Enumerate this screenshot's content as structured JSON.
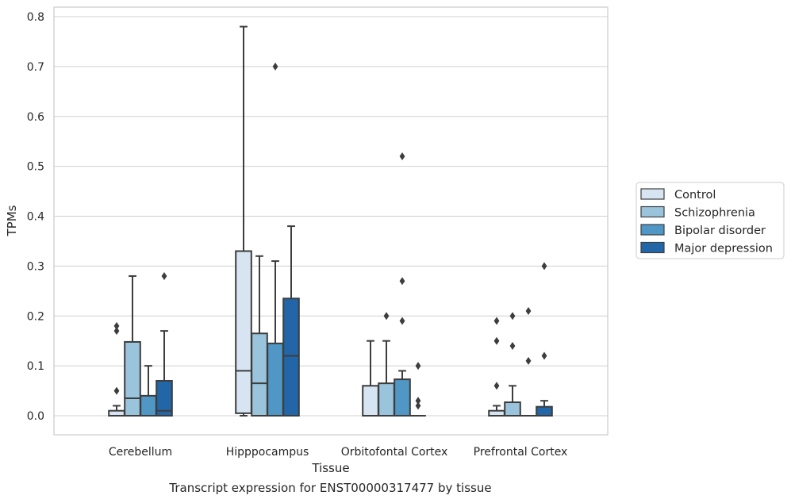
{
  "caption": "Transcript expression for ENST00000317477 by tissue",
  "chart_data": {
    "type": "box",
    "xlabel": "Tissue",
    "ylabel": "TPMs",
    "ylim": [
      -0.038,
      0.82
    ],
    "yticks": [
      0.0,
      0.1,
      0.2,
      0.3,
      0.4,
      0.5,
      0.6,
      0.7,
      0.8
    ],
    "ytick_labels": [
      "0.0",
      "0.1",
      "0.2",
      "0.3",
      "0.4",
      "0.5",
      "0.6",
      "0.7",
      "0.8"
    ],
    "grid": "horizontal",
    "legend_position": "right",
    "categories": [
      "Cerebellum",
      "Hipppocampus",
      "Orbitofontal Cortex",
      "Prefrontal Cortex"
    ],
    "series": [
      {
        "name": "Control",
        "color": "#d7e5f2",
        "boxes": [
          {
            "q1": 0.0,
            "median": 0.0,
            "q3": 0.01,
            "whisker_low": 0.0,
            "whisker_high": 0.02,
            "outliers": [
              0.05,
              0.17,
              0.18
            ]
          },
          {
            "q1": 0.005,
            "median": 0.09,
            "q3": 0.33,
            "whisker_low": 0.0,
            "whisker_high": 0.78,
            "outliers": []
          },
          {
            "q1": 0.0,
            "median": 0.0,
            "q3": 0.06,
            "whisker_low": 0.0,
            "whisker_high": 0.15,
            "outliers": []
          },
          {
            "q1": 0.0,
            "median": 0.0,
            "q3": 0.01,
            "whisker_low": 0.0,
            "whisker_high": 0.02,
            "outliers": [
              0.06,
              0.15,
              0.19
            ]
          }
        ]
      },
      {
        "name": "Schizophrenia",
        "color": "#9ac3dc",
        "boxes": [
          {
            "q1": 0.0,
            "median": 0.035,
            "q3": 0.148,
            "whisker_low": 0.0,
            "whisker_high": 0.28,
            "outliers": []
          },
          {
            "q1": 0.0,
            "median": 0.065,
            "q3": 0.165,
            "whisker_low": 0.0,
            "whisker_high": 0.32,
            "outliers": []
          },
          {
            "q1": 0.0,
            "median": 0.0,
            "q3": 0.065,
            "whisker_low": 0.0,
            "whisker_high": 0.15,
            "outliers": [
              0.2
            ]
          },
          {
            "q1": 0.0,
            "median": 0.0,
            "q3": 0.027,
            "whisker_low": 0.0,
            "whisker_high": 0.06,
            "outliers": [
              0.14,
              0.2
            ]
          }
        ]
      },
      {
        "name": "Bipolar disorder",
        "color": "#5097c6",
        "boxes": [
          {
            "q1": 0.0,
            "median": 0.0,
            "q3": 0.04,
            "whisker_low": 0.0,
            "whisker_high": 0.1,
            "outliers": []
          },
          {
            "q1": 0.0,
            "median": 0.0,
            "q3": 0.145,
            "whisker_low": 0.0,
            "whisker_high": 0.31,
            "outliers": [
              0.7
            ]
          },
          {
            "q1": 0.0,
            "median": 0.0,
            "q3": 0.073,
            "whisker_low": 0.0,
            "whisker_high": 0.09,
            "outliers": [
              0.19,
              0.27,
              0.52
            ]
          },
          {
            "q1": 0.0,
            "median": 0.0,
            "q3": 0.0,
            "whisker_low": 0.0,
            "whisker_high": 0.0,
            "outliers": [
              0.11,
              0.21
            ]
          }
        ]
      },
      {
        "name": "Major depression",
        "color": "#2266a8",
        "boxes": [
          {
            "q1": 0.0,
            "median": 0.01,
            "q3": 0.07,
            "whisker_low": 0.0,
            "whisker_high": 0.17,
            "outliers": [
              0.28
            ]
          },
          {
            "q1": 0.0,
            "median": 0.12,
            "q3": 0.235,
            "whisker_low": 0.0,
            "whisker_high": 0.38,
            "outliers": []
          },
          {
            "q1": 0.0,
            "median": 0.0,
            "q3": 0.0,
            "whisker_low": 0.0,
            "whisker_high": 0.0,
            "outliers": [
              0.02,
              0.03,
              0.1
            ]
          },
          {
            "q1": 0.0,
            "median": 0.0,
            "q3": 0.018,
            "whisker_low": 0.0,
            "whisker_high": 0.03,
            "outliers": [
              0.12,
              0.3
            ]
          }
        ]
      }
    ]
  }
}
